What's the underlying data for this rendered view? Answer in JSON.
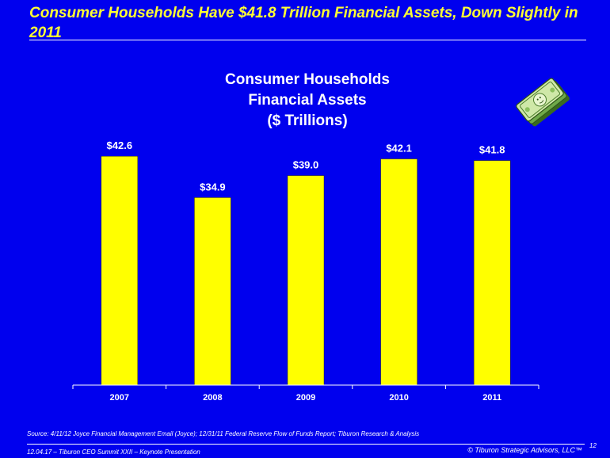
{
  "slide": {
    "title": "Consumer Households Have $41.8 Trillion Financial Assets, Down Slightly in 2011",
    "source": "Source:  4/11/12 Joyce Financial Management Email (Joyce); 12/31/11 Federal Reserve Flow of Funds Report; Tiburon Research & Analysis",
    "footer_left": "12.04.17 – Tiburon CEO Summit XXII – Keynote Presentation",
    "footer_right": "© Tiburon Strategic Advisors, LLC™",
    "page_number": "12",
    "background_color": "#0000ee",
    "title_color": "#ffff33",
    "icon": "money-stack-icon"
  },
  "chart_data": {
    "type": "bar",
    "title_lines": [
      "Consumer Households",
      "Financial Assets",
      "($ Trillions)"
    ],
    "categories": [
      "2007",
      "2008",
      "2009",
      "2010",
      "2011"
    ],
    "values": [
      42.6,
      34.9,
      39.0,
      42.1,
      41.8
    ],
    "data_labels": [
      "$42.6",
      "$34.9",
      "$39.0",
      "$42.1",
      "$41.8"
    ],
    "ylim": [
      0,
      50
    ],
    "bar_color": "#ffff00",
    "grid": false,
    "legend": "none"
  }
}
